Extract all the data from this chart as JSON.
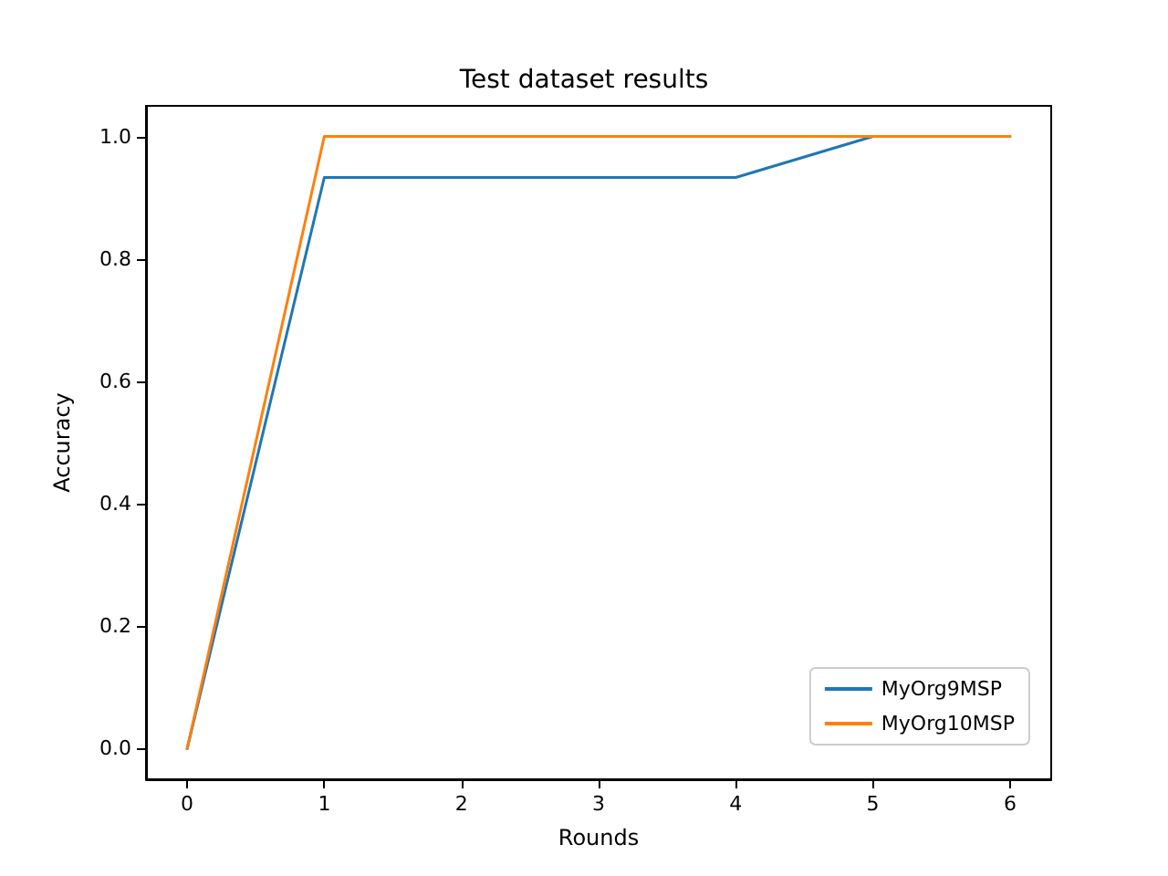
{
  "chart_data": {
    "type": "line",
    "title": "Test dataset results",
    "xlabel": "Rounds",
    "ylabel": "Accuracy",
    "x": [
      0,
      1,
      2,
      3,
      4,
      5,
      6
    ],
    "series": [
      {
        "name": "MyOrg9MSP",
        "color": "#1f77b4",
        "values": [
          0,
          0.933,
          0.933,
          0.933,
          0.933,
          1,
          1
        ]
      },
      {
        "name": "MyOrg10MSP",
        "color": "#ff7f0e",
        "values": [
          0,
          1,
          1,
          1,
          1,
          1,
          1
        ]
      }
    ],
    "xlim": [
      -0.3,
      6.3
    ],
    "xticks": [
      0,
      1,
      2,
      3,
      4,
      5,
      6
    ],
    "ylim": [
      -0.05,
      1.05
    ],
    "yticks": [
      {
        "value": 0,
        "label": "0.0"
      },
      {
        "value": 0.2,
        "label": "0.2"
      },
      {
        "value": 0.4,
        "label": "0.4"
      },
      {
        "value": 0.6,
        "label": "0.6"
      },
      {
        "value": 0.8,
        "label": "0.8"
      },
      {
        "value": 1,
        "label": "1.0"
      }
    ],
    "grid": false,
    "legend": "bottom right",
    "marker": "none",
    "line_style": "solid"
  }
}
